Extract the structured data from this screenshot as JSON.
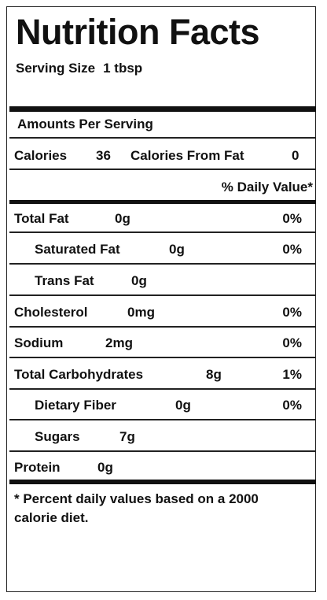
{
  "label": {
    "title": "Nutrition Facts",
    "serving_size_label": "Serving Size",
    "serving_size_value": "1 tbsp",
    "amounts_header": "Amounts Per Serving",
    "calories_label": "Calories",
    "calories_value": "36",
    "calories_fat_label": "Calories From Fat",
    "calories_fat_value": "0",
    "daily_value_header": "% Daily Value*",
    "nutrients": {
      "total_fat": {
        "label": "Total Fat",
        "amount": "0g",
        "dv": "0%"
      },
      "saturated_fat": {
        "label": "Saturated Fat",
        "amount": "0g",
        "dv": "0%"
      },
      "trans_fat": {
        "label": "Trans Fat",
        "amount": "0g"
      },
      "cholesterol": {
        "label": "Cholesterol",
        "amount": "0mg",
        "dv": "0%"
      },
      "sodium": {
        "label": "Sodium",
        "amount": "2mg",
        "dv": "0%"
      },
      "total_carbohydrates": {
        "label": "Total Carbohydrates",
        "amount": "8g",
        "dv": "1%"
      },
      "dietary_fiber": {
        "label": "Dietary Fiber",
        "amount": "0g",
        "dv": "0%"
      },
      "sugars": {
        "label": "Sugars",
        "amount": "7g"
      },
      "protein": {
        "label": "Protein",
        "amount": "0g"
      }
    },
    "footnote": "* Percent daily values based on a 2000 calorie diet."
  }
}
